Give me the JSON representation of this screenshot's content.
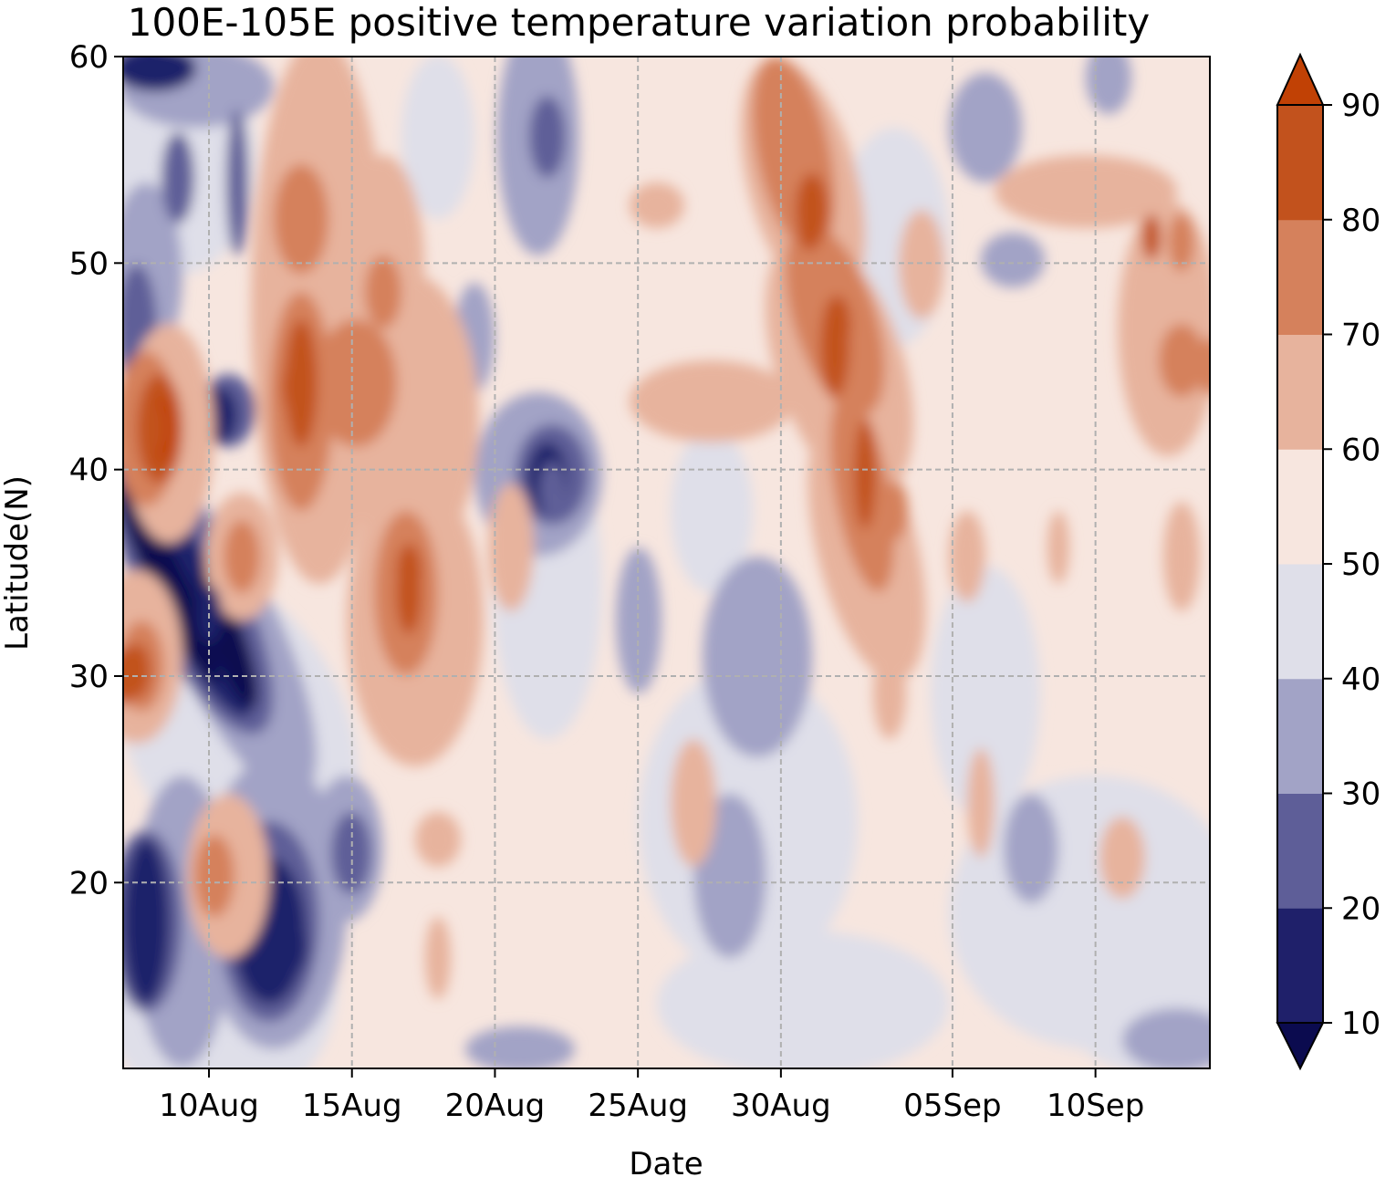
{
  "chart_data": {
    "type": "heatmap",
    "subtype": "filled-contour",
    "title": "100E-105E positive temperature variation probability",
    "xlabel": "Date",
    "ylabel": "Latitude(N)",
    "x_ticks": [
      "10Aug",
      "15Aug",
      "20Aug",
      "25Aug",
      "30Aug",
      "05Sep",
      "10Sep"
    ],
    "x_range": [
      "07Aug",
      "14Sep"
    ],
    "y_ticks": [
      20,
      30,
      40,
      50,
      60
    ],
    "y_range": [
      11,
      60
    ],
    "grid": true,
    "colorbar": {
      "ticks": [
        10,
        20,
        30,
        40,
        50,
        60,
        70,
        80,
        90
      ],
      "extend": "both",
      "levels": [
        {
          "range": "<10",
          "color": "#0b0b4f"
        },
        {
          "range": "10-20",
          "color": "#1f206a"
        },
        {
          "range": "20-30",
          "color": "#5e5e98"
        },
        {
          "range": "30-40",
          "color": "#a2a3c6"
        },
        {
          "range": "40-50",
          "color": "#dfdfe9"
        },
        {
          "range": "50-60",
          "color": "#f7e6df"
        },
        {
          "range": "60-70",
          "color": "#e7b39d"
        },
        {
          "range": "70-80",
          "color": "#d5815c"
        },
        {
          "range": "80-90",
          "color": "#c2521d"
        },
        {
          "range": ">90",
          "color": "#c14105"
        }
      ]
    },
    "features": [
      {
        "date": "08Aug",
        "lat": 42,
        "value": 85
      },
      {
        "date": "07Aug",
        "lat": 30,
        "value": 80
      },
      {
        "date": "10Aug",
        "lat": 33,
        "value": 12
      },
      {
        "date": "08Aug",
        "lat": 17,
        "value": 12
      },
      {
        "date": "13Aug",
        "lat": 17,
        "value": 12
      },
      {
        "date": "13Aug",
        "lat": 44,
        "value": 80
      },
      {
        "date": "17Aug",
        "lat": 35,
        "value": 80
      },
      {
        "date": "22Aug",
        "lat": 39,
        "value": 22
      },
      {
        "date": "31Aug",
        "lat": 52,
        "value": 85
      },
      {
        "date": "01Sep",
        "lat": 47,
        "value": 85
      },
      {
        "date": "03Sep",
        "lat": 38,
        "value": 78
      },
      {
        "date": "13Sep",
        "lat": 51,
        "value": 75
      },
      {
        "date": "14Sep",
        "lat": 45,
        "value": 72
      }
    ]
  }
}
